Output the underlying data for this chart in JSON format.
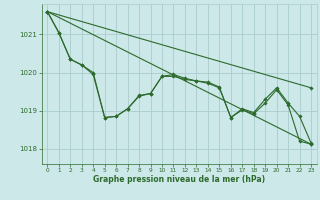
{
  "background_color": "#cce8e8",
  "grid_color": "#aacccc",
  "line_color": "#2d6a2d",
  "marker_color": "#2d6a2d",
  "xlabel": "Graphe pression niveau de la mer (hPa)",
  "xlim": [
    -0.5,
    23.5
  ],
  "ylim": [
    1017.6,
    1021.8
  ],
  "yticks": [
    1018,
    1019,
    1020,
    1021
  ],
  "xticks": [
    0,
    1,
    2,
    3,
    4,
    5,
    6,
    7,
    8,
    9,
    10,
    11,
    12,
    13,
    14,
    15,
    16,
    17,
    18,
    19,
    20,
    21,
    22,
    23
  ],
  "series_zigzag": {
    "x": [
      0,
      1,
      2,
      3,
      4,
      5,
      6,
      7,
      8,
      9,
      10,
      11,
      12,
      13,
      14,
      15,
      16,
      17,
      18,
      19,
      20,
      21,
      22,
      23
    ],
    "y": [
      1021.6,
      1021.05,
      1020.35,
      1020.2,
      1020.0,
      1018.82,
      1018.85,
      1019.05,
      1019.4,
      1019.45,
      1019.9,
      1019.95,
      1019.85,
      1019.78,
      1019.75,
      1019.62,
      1018.82,
      1019.05,
      1018.95,
      1019.3,
      1019.6,
      1019.2,
      1018.85,
      1018.15
    ]
  },
  "series_smooth": {
    "x": [
      0,
      1,
      2,
      3,
      4,
      5,
      6,
      7,
      8,
      9,
      10,
      11,
      12,
      13,
      14,
      15,
      16,
      17,
      18,
      19,
      20,
      21,
      22,
      23
    ],
    "y": [
      1021.6,
      1021.05,
      1020.35,
      1020.2,
      1019.95,
      1018.82,
      1018.85,
      1019.05,
      1019.38,
      1019.45,
      1019.9,
      1019.9,
      1019.82,
      1019.78,
      1019.72,
      1019.6,
      1018.82,
      1019.02,
      1018.92,
      1019.2,
      1019.55,
      1019.15,
      1018.2,
      1018.12
    ]
  },
  "series_linear1": {
    "x": [
      0,
      23
    ],
    "y": [
      1021.6,
      1019.6
    ]
  },
  "series_linear2": {
    "x": [
      0,
      23
    ],
    "y": [
      1021.6,
      1018.12
    ]
  }
}
